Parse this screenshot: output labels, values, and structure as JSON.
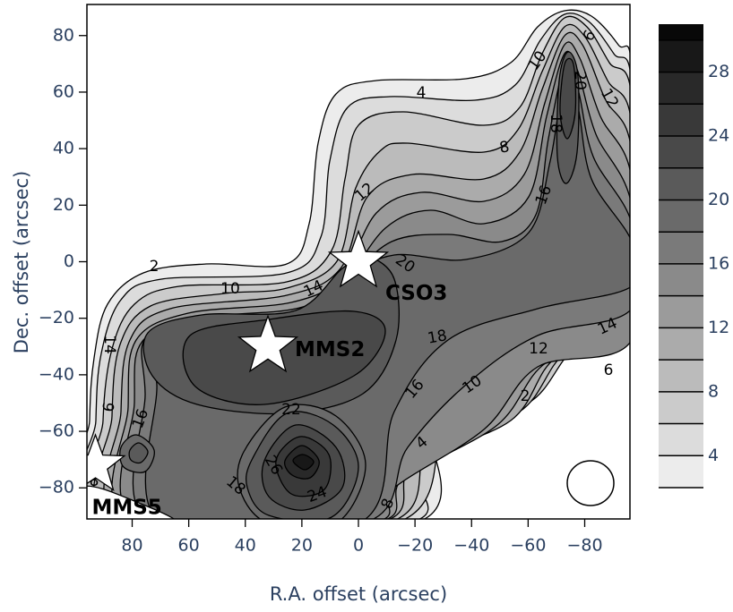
{
  "chart_data": {
    "type": "contour",
    "x_label": "R.A. offset (arcsec)",
    "y_label": "Dec. offset (arcsec)",
    "xlim": [
      96,
      -96
    ],
    "ylim": [
      -91,
      91
    ],
    "xticks": [
      80,
      60,
      40,
      20,
      0,
      {
        "value": -20,
        "label": "−20"
      },
      {
        "value": -40,
        "label": "−40"
      },
      {
        "value": -60,
        "label": "−60"
      },
      {
        "value": -80,
        "label": "−80"
      }
    ],
    "yticks": [
      {
        "value": -80,
        "label": "−80"
      },
      {
        "value": -60,
        "label": "−60"
      },
      {
        "value": -40,
        "label": "−40"
      },
      {
        "value": -20,
        "label": "−20"
      },
      0,
      20,
      40,
      60,
      80
    ],
    "levels": [
      2,
      4,
      6,
      8,
      10,
      12,
      14,
      16,
      18,
      20,
      22,
      24,
      26,
      28,
      30
    ],
    "clim": [
      2,
      31
    ],
    "colorbar_ticks": [
      4,
      8,
      12,
      16,
      20,
      24,
      28
    ],
    "contour_labels": [
      4,
      8,
      10,
      6,
      20,
      12,
      18,
      16,
      12,
      20,
      2,
      10,
      14,
      14,
      6,
      16,
      18,
      12,
      14,
      6,
      16,
      10,
      2,
      4,
      22,
      26,
      24,
      18,
      8,
      8
    ],
    "sources": [
      {
        "name": "CSO3",
        "x": 0,
        "y": 0
      },
      {
        "name": "MMS2",
        "x": 32,
        "y": -30
      },
      {
        "name": "MMS5",
        "x": 93,
        "y": -72
      }
    ]
  }
}
